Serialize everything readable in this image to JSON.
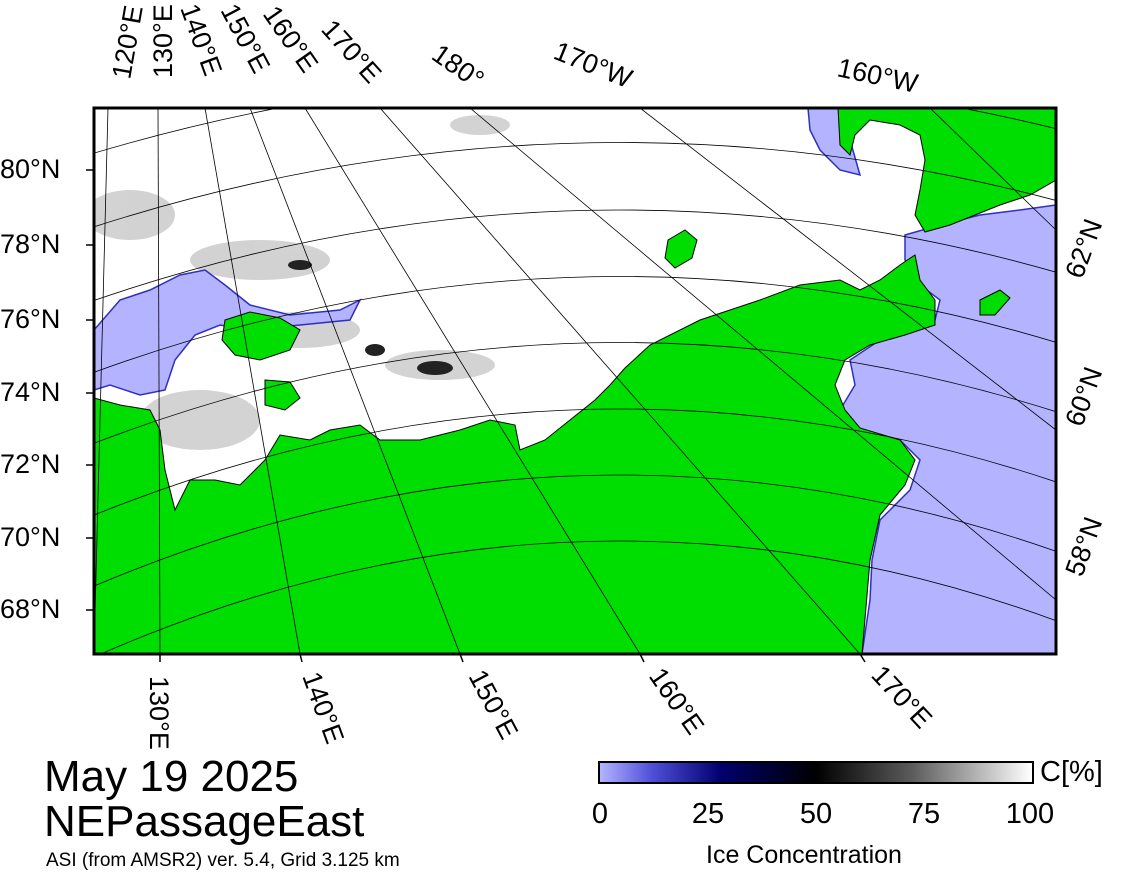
{
  "title": {
    "date": "May 19 2025",
    "region": "NEPassageEast",
    "subtitle": "ASI (from AMSR2) ver. 5.4,  Grid 3.125 km"
  },
  "colorbar": {
    "label": "Ice Concentration",
    "unit": "C[%]",
    "ticks": [
      "0",
      "25",
      "50",
      "75",
      "100"
    ],
    "range": [
      0,
      100
    ],
    "colors": {
      "low": "#b3b3ff",
      "mid_low": "#00006e",
      "mid": "#000000",
      "high": "#ffffff"
    }
  },
  "map": {
    "colors": {
      "land": "#00dd00",
      "open_water": "#b3b3ff",
      "ice": "#ffffff",
      "grid": "#000000"
    },
    "top_longitude_labels": [
      "120°E",
      "130°E",
      "140°E",
      "150°E",
      "160°E",
      "170°E",
      "180°",
      "170°W",
      "160°W"
    ],
    "bottom_longitude_labels": [
      "130°E",
      "140°E",
      "150°E",
      "160°E",
      "170°E"
    ],
    "left_latitude_labels": [
      "80°N",
      "78°N",
      "76°N",
      "74°N",
      "72°N",
      "70°N",
      "68°N"
    ],
    "right_latitude_labels": [
      "62°N",
      "60°N",
      "58°N"
    ]
  }
}
